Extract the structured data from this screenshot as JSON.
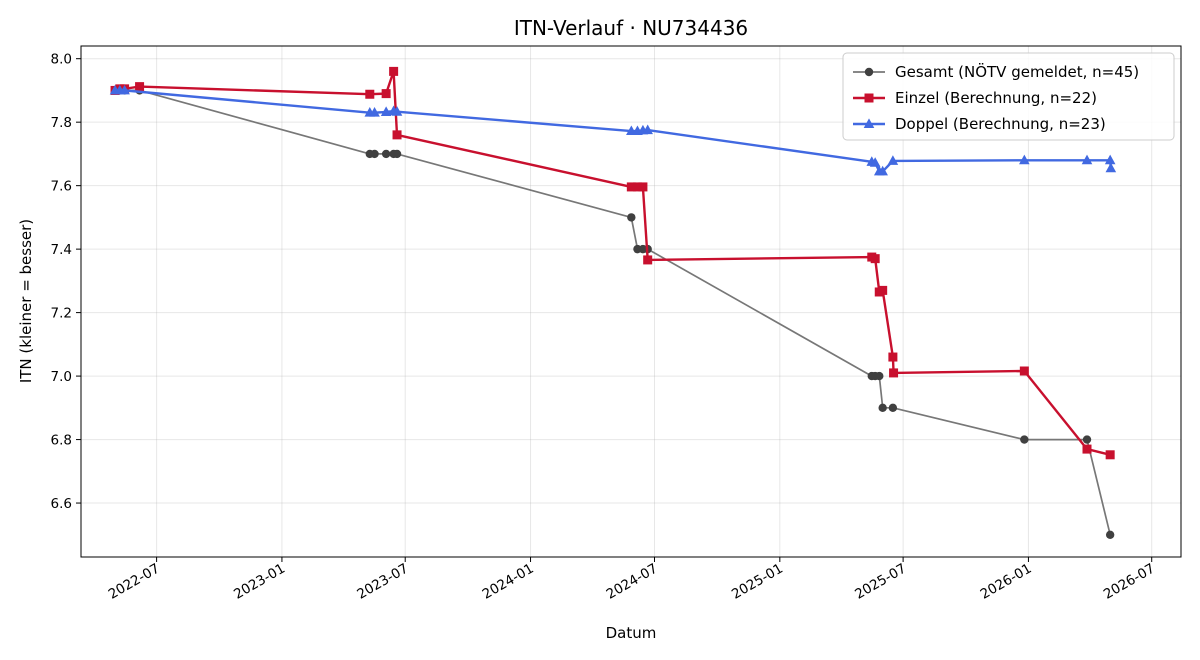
{
  "chart_data": {
    "type": "line",
    "title": "ITN-Verlauf · NU734436",
    "xlabel": "Datum",
    "ylabel": "ITN  (kleiner = besser)",
    "xlim": [
      "2022-03-12",
      "2026-08-13"
    ],
    "ylim": [
      6.43,
      8.04
    ],
    "grid": true,
    "legend_position": "top-right",
    "x_ticks": [
      "2022-07",
      "2023-01",
      "2023-07",
      "2024-01",
      "2024-07",
      "2025-01",
      "2025-07",
      "2026-01",
      "2026-07"
    ],
    "y_ticks": [
      "6.6",
      "6.8",
      "7.0",
      "7.2",
      "7.4",
      "7.6",
      "7.8",
      "8.0"
    ],
    "series": [
      {
        "name": "Gesamt (NÖTV gemeldet, n=45)",
        "color": "#777777",
        "marker_color": "#404040",
        "marker": "circle",
        "points": [
          [
            "2022-05-01",
            7.9
          ],
          [
            "2022-05-08",
            7.9
          ],
          [
            "2022-05-15",
            7.9
          ],
          [
            "2022-06-06",
            7.9
          ],
          [
            "2023-05-10",
            7.7
          ],
          [
            "2023-05-17",
            7.7
          ],
          [
            "2023-06-03",
            7.7
          ],
          [
            "2023-06-14",
            7.7
          ],
          [
            "2023-06-19",
            7.7
          ],
          [
            "2024-05-28",
            7.5
          ],
          [
            "2024-06-06",
            7.4
          ],
          [
            "2024-06-14",
            7.4
          ],
          [
            "2024-06-21",
            7.4
          ],
          [
            "2025-05-16",
            7.0
          ],
          [
            "2025-05-21",
            7.0
          ],
          [
            "2025-05-27",
            7.0
          ],
          [
            "2025-06-01",
            6.9
          ],
          [
            "2025-06-16",
            6.9
          ],
          [
            "2025-12-26",
            6.8
          ],
          [
            "2026-03-28",
            6.8
          ],
          [
            "2026-05-01",
            6.5
          ]
        ]
      },
      {
        "name": "Einzel (Berechnung, n=22)",
        "color": "#c8102e",
        "marker_color": "#c8102e",
        "marker": "square",
        "points": [
          [
            "2022-05-01",
            7.9
          ],
          [
            "2022-05-08",
            7.905
          ],
          [
            "2022-05-15",
            7.905
          ],
          [
            "2022-06-06",
            7.912
          ],
          [
            "2023-05-10",
            7.888
          ],
          [
            "2023-06-03",
            7.89
          ],
          [
            "2023-06-14",
            7.96
          ],
          [
            "2023-06-19",
            7.76
          ],
          [
            "2024-05-28",
            7.596
          ],
          [
            "2024-06-06",
            7.596
          ],
          [
            "2024-06-14",
            7.596
          ],
          [
            "2024-06-21",
            7.366
          ],
          [
            "2025-05-16",
            7.375
          ],
          [
            "2025-05-21",
            7.37
          ],
          [
            "2025-05-27",
            7.265
          ],
          [
            "2025-06-01",
            7.27
          ],
          [
            "2025-06-16",
            7.06
          ],
          [
            "2025-06-17",
            7.01
          ],
          [
            "2025-12-26",
            7.016
          ],
          [
            "2026-03-28",
            6.77
          ],
          [
            "2026-05-01",
            6.752
          ]
        ]
      },
      {
        "name": "Doppel (Berechnung, n=23)",
        "color": "#4169e1",
        "marker_color": "#4169e1",
        "marker": "triangle",
        "points": [
          [
            "2022-05-01",
            7.9
          ],
          [
            "2022-05-08",
            7.9
          ],
          [
            "2022-05-15",
            7.9
          ],
          [
            "2023-05-10",
            7.83
          ],
          [
            "2023-05-17",
            7.83
          ],
          [
            "2023-06-03",
            7.832
          ],
          [
            "2023-06-14",
            7.835
          ],
          [
            "2023-06-19",
            7.833
          ],
          [
            "2024-05-28",
            7.772
          ],
          [
            "2024-06-06",
            7.772
          ],
          [
            "2024-06-14",
            7.774
          ],
          [
            "2024-06-21",
            7.775
          ],
          [
            "2025-05-16",
            7.675
          ],
          [
            "2025-05-21",
            7.672
          ],
          [
            "2025-05-27",
            7.645
          ],
          [
            "2025-06-01",
            7.645
          ],
          [
            "2025-06-16",
            7.678
          ],
          [
            "2025-12-26",
            7.68
          ],
          [
            "2026-03-28",
            7.68
          ],
          [
            "2026-05-01",
            7.68
          ],
          [
            "2026-05-02",
            7.655
          ]
        ]
      }
    ]
  }
}
